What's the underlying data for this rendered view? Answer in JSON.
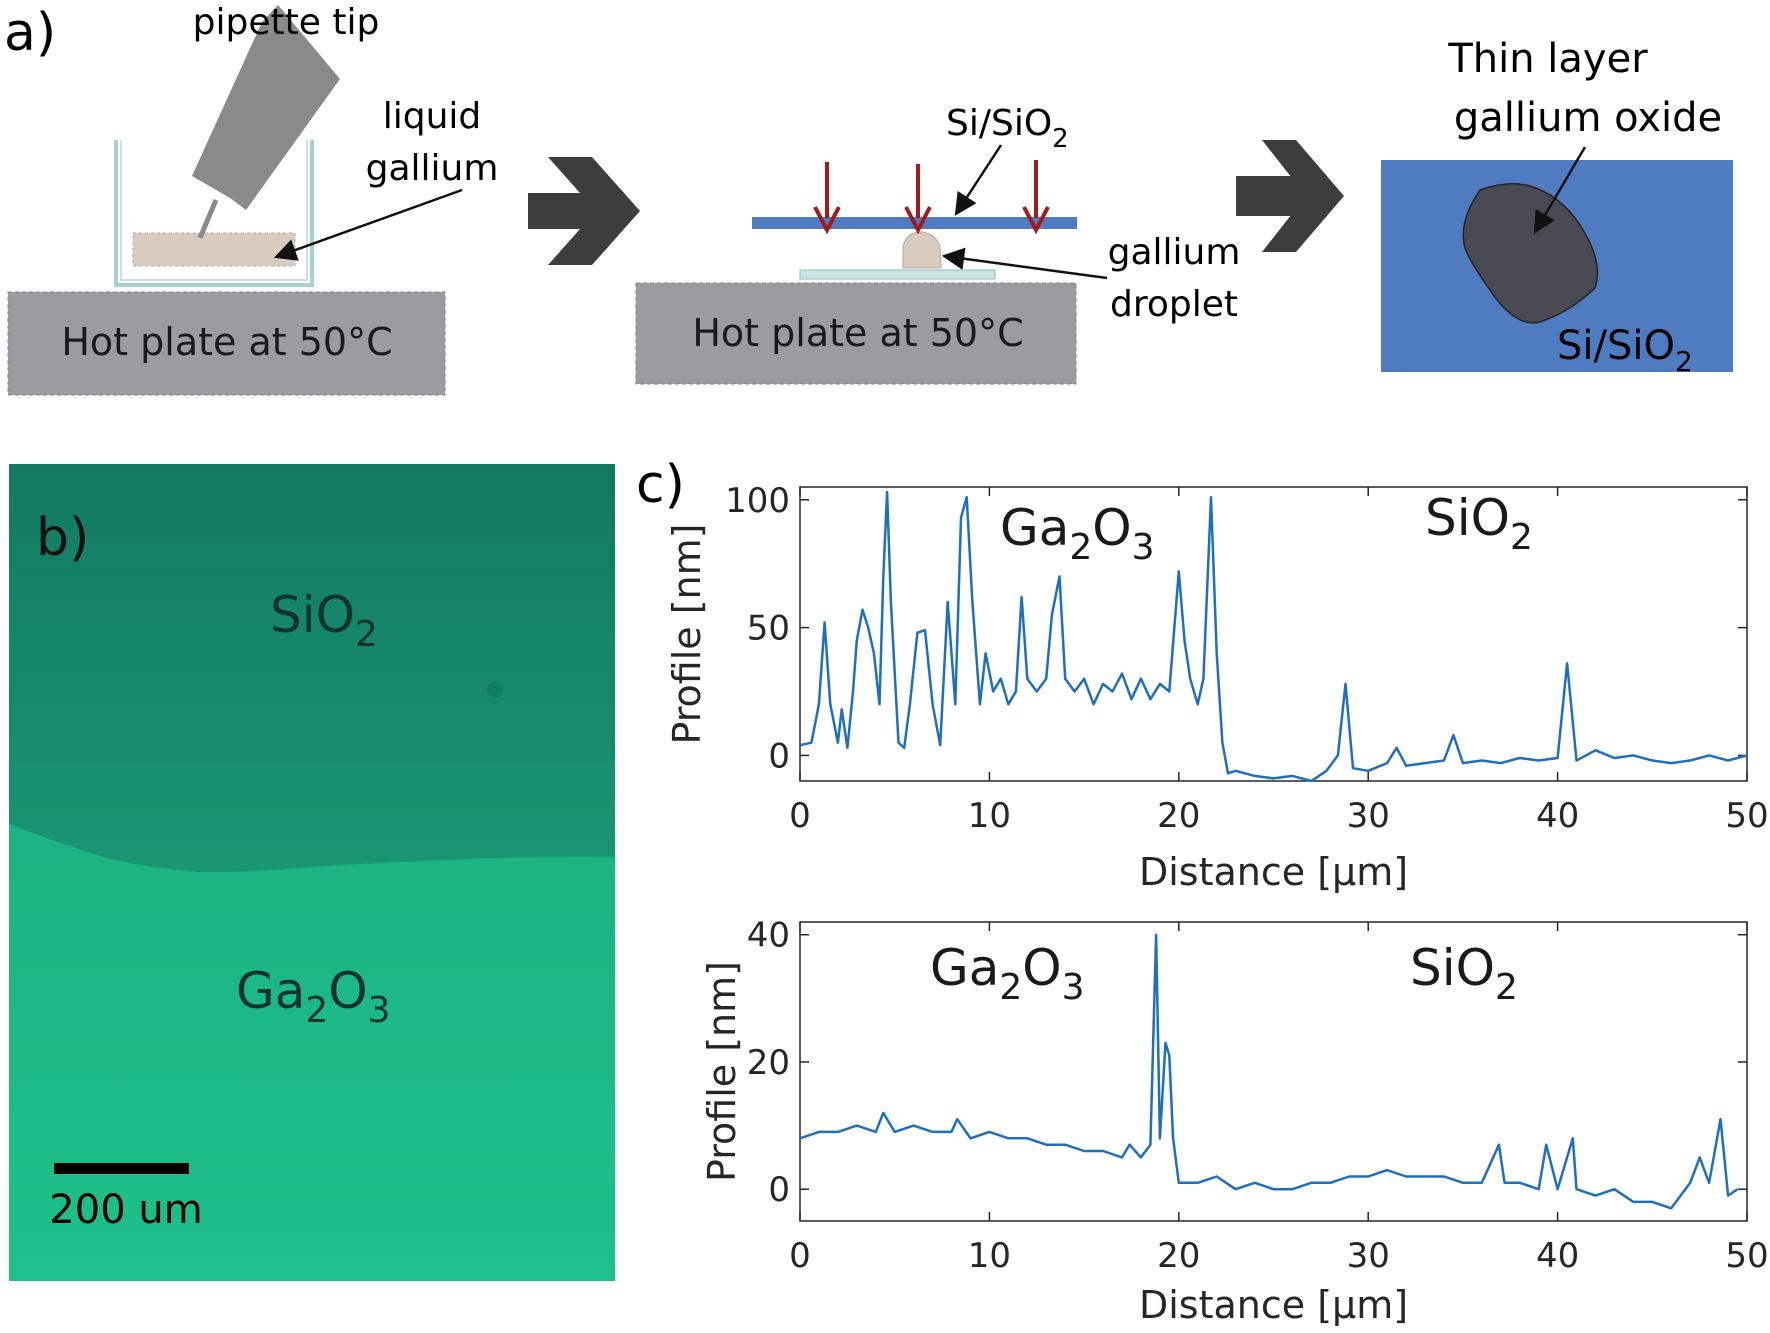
{
  "panel_a": {
    "label": "a)",
    "step1": {
      "pipette_label": "pipette tip",
      "gallium_label": [
        "liquid",
        "gallium"
      ],
      "hotplate_label": "Hot plate at 50°C"
    },
    "step2": {
      "substrate_label": "Si/SiO",
      "substrate_sub": "2",
      "droplet_label": [
        "gallium",
        "droplet"
      ],
      "hotplate_label": "Hot plate at 50°C"
    },
    "step3": {
      "title": [
        "Thin layer",
        "gallium oxide"
      ],
      "substrate_label": "Si/SiO",
      "substrate_sub": "2"
    },
    "colors": {
      "hotplate": "#9b9c9e",
      "gallium": "#d9cbbd",
      "wafer": "#4f7cc1",
      "oxide": "#4a4a55",
      "arrow_red": "#a11b1b",
      "chevron": "#3d3d3d"
    }
  },
  "panel_b": {
    "label": "b)",
    "sio2_label": "SiO",
    "sio2_sub": "2",
    "ga2o3_parts": [
      "Ga",
      "2",
      "O",
      "3"
    ],
    "scalebar_label": "200 um",
    "colors": {
      "top": "#13876a",
      "bottom": "#1cbb86"
    }
  },
  "panel_c": {
    "label": "c)"
  },
  "chart_data": [
    {
      "type": "line",
      "title": "",
      "xlabel": "Distance [μm]",
      "ylabel": "Profile [nm]",
      "xlim": [
        0,
        50
      ],
      "ylim": [
        -10,
        105
      ],
      "xticks": [
        0,
        10,
        20,
        30,
        40,
        50
      ],
      "yticks": [
        0,
        50,
        100
      ],
      "annotations": [
        {
          "parts": [
            "Ga",
            "2",
            "O",
            "3"
          ]
        },
        {
          "parts": [
            "SiO",
            "2"
          ]
        }
      ],
      "series": [
        {
          "name": "profile",
          "color": "#1f6fbf",
          "x": [
            0,
            0.6,
            1.0,
            1.3,
            1.6,
            2.0,
            2.2,
            2.5,
            2.8,
            3.0,
            3.3,
            3.6,
            3.9,
            4.2,
            4.4,
            4.6,
            4.8,
            5.2,
            5.5,
            5.8,
            6.2,
            6.6,
            7.0,
            7.4,
            7.8,
            8.2,
            8.5,
            8.8,
            9.1,
            9.5,
            9.8,
            10.2,
            10.6,
            11.0,
            11.4,
            11.7,
            12.0,
            12.5,
            13.0,
            13.3,
            13.7,
            14.0,
            14.5,
            15.0,
            15.5,
            16.0,
            16.5,
            17.0,
            17.5,
            18.0,
            18.5,
            19.0,
            19.5,
            20.0,
            20.3,
            20.6,
            21.0,
            21.3,
            21.7,
            22.0,
            22.3,
            22.6,
            23.0,
            24.0,
            25.0,
            26.0,
            27.0,
            27.8,
            28.4,
            28.8,
            29.2,
            30.0,
            31.0,
            31.5,
            32.0,
            33.0,
            34.0,
            34.5,
            35.0,
            36.0,
            37.0,
            38.0,
            39.0,
            40.0,
            40.5,
            41.0,
            42.0,
            43.0,
            44.0,
            45.0,
            46.0,
            47.0,
            48.0,
            49.0,
            50.0
          ],
          "y": [
            4,
            5,
            20,
            52,
            20,
            5,
            18,
            3,
            25,
            45,
            57,
            50,
            40,
            20,
            70,
            103,
            60,
            5,
            3,
            20,
            48,
            49,
            20,
            4,
            60,
            20,
            93,
            101,
            60,
            20,
            40,
            25,
            30,
            20,
            25,
            62,
            30,
            25,
            30,
            55,
            70,
            30,
            25,
            30,
            20,
            28,
            25,
            32,
            22,
            30,
            22,
            28,
            25,
            72,
            45,
            30,
            20,
            30,
            101,
            40,
            5,
            -7,
            -6,
            -8,
            -9,
            -8,
            -10,
            -6,
            0,
            28,
            -5,
            -6,
            -3,
            3,
            -4,
            -3,
            -2,
            8,
            -3,
            -2,
            -3,
            -1,
            -2,
            -1,
            36,
            -2,
            2,
            -1,
            0,
            -2,
            -3,
            -2,
            0,
            -2,
            0
          ]
        }
      ]
    },
    {
      "type": "line",
      "title": "",
      "xlabel": "Distance [μm]",
      "ylabel": "Profile [nm]",
      "xlim": [
        0,
        50
      ],
      "ylim": [
        -5,
        42
      ],
      "xticks": [
        0,
        10,
        20,
        30,
        40,
        50
      ],
      "yticks": [
        0,
        20,
        40
      ],
      "annotations": [
        {
          "parts": [
            "Ga",
            "2",
            "O",
            "3"
          ]
        },
        {
          "parts": [
            "SiO",
            "2"
          ]
        }
      ],
      "series": [
        {
          "name": "profile",
          "color": "#1f6fbf",
          "x": [
            0,
            1,
            2,
            3,
            4,
            4.4,
            5,
            6,
            7,
            8,
            8.3,
            9,
            10,
            11,
            12,
            13,
            14,
            15,
            16,
            17,
            17.4,
            18,
            18.5,
            18.8,
            19.0,
            19.3,
            19.5,
            19.7,
            20.0,
            21,
            22,
            23,
            24,
            25,
            26,
            27,
            28,
            29,
            30,
            31,
            32,
            33,
            34,
            35,
            36,
            36.9,
            37.2,
            38,
            39,
            39.4,
            40,
            40.8,
            41.0,
            42,
            43,
            44,
            45,
            46,
            47,
            47.5,
            48,
            48.6,
            49,
            49.5
          ],
          "y": [
            8,
            9,
            9,
            10,
            9,
            12,
            9,
            10,
            9,
            9,
            11,
            8,
            9,
            8,
            8,
            7,
            7,
            6,
            6,
            5,
            7,
            5,
            7,
            40,
            8,
            23,
            21,
            8,
            1,
            1,
            2,
            0,
            1,
            0,
            0,
            1,
            1,
            2,
            2,
            3,
            2,
            2,
            2,
            1,
            1,
            7,
            1,
            1,
            0,
            7,
            0,
            8,
            0,
            -1,
            0,
            -2,
            -2,
            -3,
            1,
            5,
            1,
            11,
            -1,
            0
          ]
        }
      ]
    }
  ]
}
